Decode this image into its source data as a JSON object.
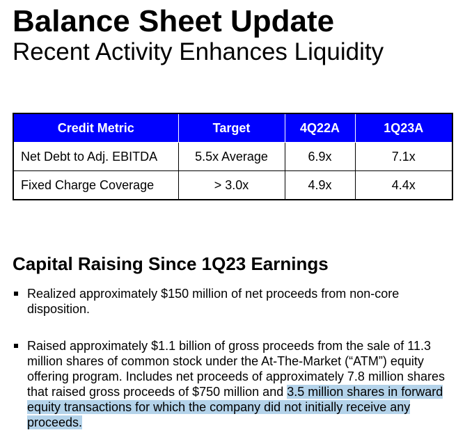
{
  "title": "Balance Sheet Update",
  "subtitle": "Recent Activity Enhances Liquidity",
  "table": {
    "headers": [
      "Credit Metric",
      "Target",
      "4Q22A",
      "1Q23A"
    ],
    "rows": [
      [
        "Net Debt to Adj. EBITDA",
        "5.5x Average",
        "6.9x",
        "7.1x"
      ],
      [
        "Fixed Charge Coverage",
        "> 3.0x",
        "4.9x",
        "4.4x"
      ]
    ]
  },
  "section_heading": "Capital Raising Since 1Q23 Earnings",
  "bullets": [
    {
      "text": "Realized approximately $150 million of net proceeds from non-core disposition."
    },
    {
      "text_plain": "Raised approximately $1.1 billion of gross proceeds from the sale of 11.3 million shares of common stock under the At-The-Market (“ATM”) equity offering program. Includes net proceeds of approximately 7.8 million shares that raised gross proceeds of $750 million and ",
      "text_highlighted": "3.5 million shares in forward equity transactions for which the company did not initially receive any proceeds."
    }
  ],
  "colors": {
    "header_bg": "#0000ff",
    "header_text": "#ffffff",
    "highlight": "#b4d3ea"
  }
}
